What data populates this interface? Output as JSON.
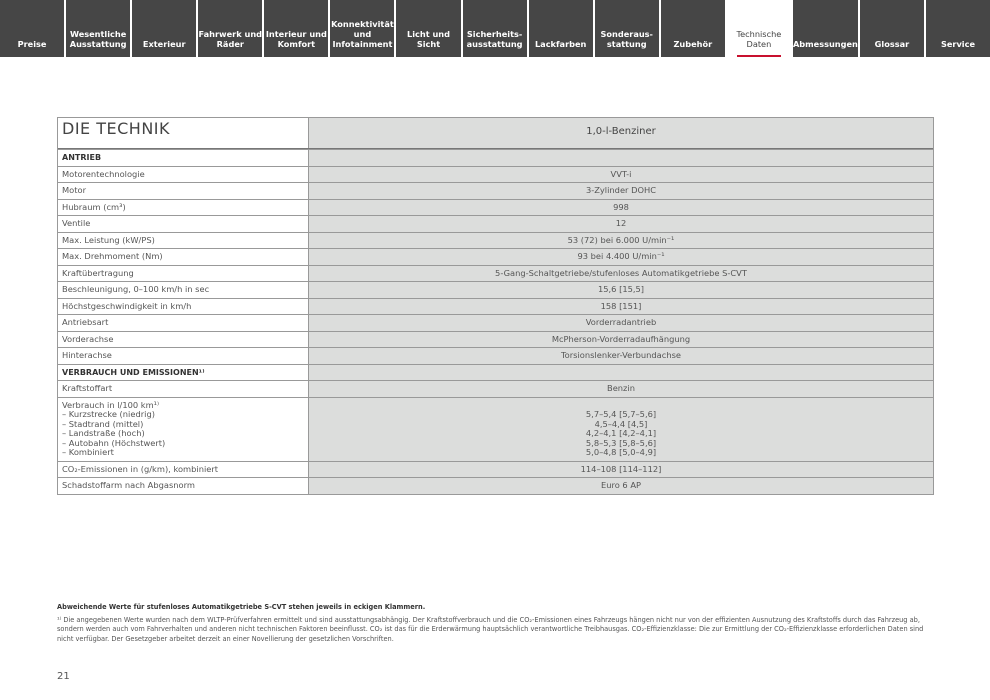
{
  "nav": {
    "tabs": [
      "Preise",
      "Wesentliche Ausstattung",
      "Exterieur",
      "Fahrwerk und Räder",
      "Interieur und Komfort",
      "Konnektivität und Infotainment",
      "Licht und Sicht",
      "Sicherheits-ausstattung",
      "Lackfarben",
      "Sonderaus-stattung",
      "Zubehör",
      "Technische Daten",
      "Abmessungen",
      "Glossar",
      "Service"
    ],
    "active": "Technische Daten",
    "accent": "#c8102e"
  },
  "table": {
    "title": "DIE TECHNIK",
    "column": "1,0-l-Benziner",
    "rows": [
      {
        "label": "ANTRIEB",
        "value": "",
        "section": true
      },
      {
        "label": "Motorentechnologie",
        "value": "VVT-i"
      },
      {
        "label": "Motor",
        "value": "3-Zylinder DOHC"
      },
      {
        "label": "Hubraum (cm³)",
        "value": "998"
      },
      {
        "label": "Ventile",
        "value": "12"
      },
      {
        "label": "Max. Leistung (kW/PS)",
        "value": "53 (72) bei 6.000 U/min⁻¹"
      },
      {
        "label": "Max. Drehmoment (Nm)",
        "value": "93 bei 4.400 U/min⁻¹"
      },
      {
        "label": "Kraftübertragung",
        "value": "5-Gang-Schaltgetriebe/stufenloses Automatikgetriebe S-CVT"
      },
      {
        "label": "Beschleunigung, 0–100 km/h in sec",
        "value": "15,6 [15,5]"
      },
      {
        "label": "Höchstgeschwindigkeit in km/h",
        "value": "158 [151]"
      },
      {
        "label": "Antriebsart",
        "value": "Vorderradantrieb"
      },
      {
        "label": "Vorderachse",
        "value": "McPherson-Vorderradaufhängung"
      },
      {
        "label": "Hinterachse",
        "value": "Torsionslenker-Verbundachse"
      },
      {
        "label": "VERBRAUCH UND EMISSIONEN¹⁾",
        "value": "",
        "section": true
      },
      {
        "label": "Kraftstoffart",
        "value": "Benzin"
      },
      {
        "label": "Verbrauch in l/100 km¹⁾\n– Kurzstrecke (niedrig)\n– Stadtrand (mittel)\n– Landstraße (hoch)\n– Autobahn (Höchstwert)\n– Kombiniert",
        "value": "\n5,7–5,4 [5,7–5,6]\n4,5–4,4 [4,5]\n4,2–4,1 [4,2–4,1]\n5,8–5,3 [5,8–5,6]\n5,0–4,8 [5,0–4,9]"
      },
      {
        "label": "CO₂-Emissionen in (g/km), kombiniert",
        "value": "114–108 [114–112]"
      },
      {
        "label": "Schadstoffarm nach Abgasnorm",
        "value": "Euro 6 AP"
      }
    ]
  },
  "footer": {
    "note": "Abweichende Werte für stufenloses Automatikgetriebe S-CVT stehen jeweils in eckigen Klammern.",
    "footnote": "¹⁾ Die angegebenen Werte wurden nach dem WLTP-Prüfverfahren ermittelt und sind ausstattungsabhängig. Der Kraftstoffverbrauch und die CO₂-Emissionen eines Fahrzeugs hängen nicht nur von der effizienten Ausnutzung des Kraftstoffs durch das Fahrzeug ab, sondern werden auch vom Fahrverhalten und anderen nicht technischen Faktoren beeinflusst. CO₂ ist das für die Erderwärmung hauptsächlich verantwortliche Treibhausgas. CO₂-Effizienzklasse: Die zur Ermittlung der CO₂-Effizienzklasse erforderlichen Daten sind nicht verfügbar. Der Gesetzgeber arbeitet derzeit an einer Novellierung der gesetzlichen Vorschriften.",
    "page": "21"
  }
}
